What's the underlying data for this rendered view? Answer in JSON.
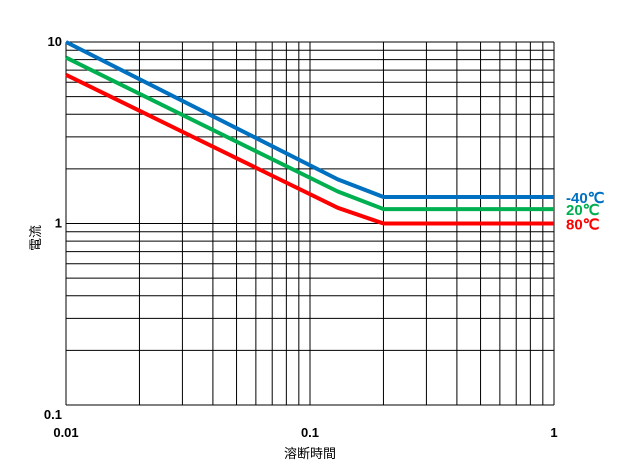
{
  "chart_data": {
    "type": "line",
    "xlabel": "溶断時間",
    "ylabel": "電流",
    "x_scale": "log",
    "y_scale": "log",
    "xlim": [
      0.01,
      1
    ],
    "ylim": [
      0.1,
      10
    ],
    "grid": true,
    "x_ticks": [
      {
        "value": 0.01,
        "label": "0.01"
      },
      {
        "value": 0.1,
        "label": "0.1"
      },
      {
        "value": 1,
        "label": "1"
      }
    ],
    "y_ticks": [
      {
        "value": 0.1,
        "label": "0.1"
      },
      {
        "value": 1,
        "label": "1"
      },
      {
        "value": 10,
        "label": "10"
      }
    ],
    "series": [
      {
        "name": "-40℃",
        "color": "#0070c0",
        "points": [
          [
            0.01,
            10
          ],
          [
            0.13,
            1.75
          ],
          [
            0.2,
            1.4
          ],
          [
            1,
            1.4
          ]
        ]
      },
      {
        "name": "20℃",
        "color": "#00b050",
        "points": [
          [
            0.01,
            8.2
          ],
          [
            0.13,
            1.5
          ],
          [
            0.2,
            1.2
          ],
          [
            1,
            1.2
          ]
        ]
      },
      {
        "name": "80℃",
        "color": "#ff0000",
        "points": [
          [
            0.01,
            6.6
          ],
          [
            0.13,
            1.22
          ],
          [
            0.2,
            1.0
          ],
          [
            1,
            1.0
          ]
        ]
      }
    ]
  }
}
